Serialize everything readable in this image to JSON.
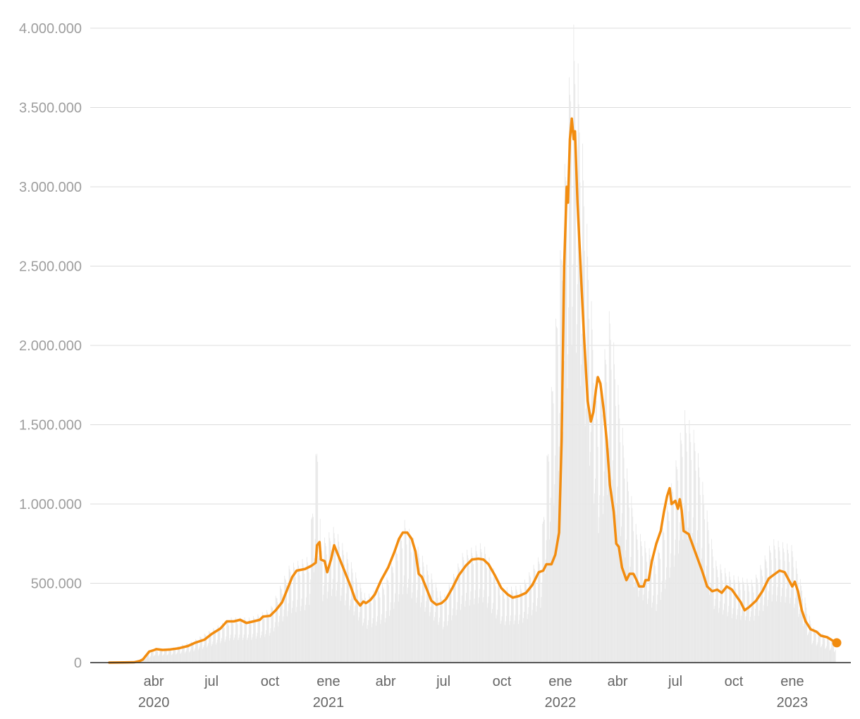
{
  "chart_data": {
    "type": "line",
    "title": "",
    "xlabel": "",
    "ylabel": "",
    "ylim": [
      0,
      4000000
    ],
    "xlim": [
      "2020-01-22",
      "2023-03-12"
    ],
    "y_ticks": [
      {
        "value": 0,
        "label": "0"
      },
      {
        "value": 500000,
        "label": "500.000"
      },
      {
        "value": 1000000,
        "label": "1.000.000"
      },
      {
        "value": 1500000,
        "label": "1.500.000"
      },
      {
        "value": 2000000,
        "label": "2.000.000"
      },
      {
        "value": 2500000,
        "label": "2.500.000"
      },
      {
        "value": 3000000,
        "label": "3.000.000"
      },
      {
        "value": 3500000,
        "label": "3.500.000"
      },
      {
        "value": 4000000,
        "label": "4.000.000"
      }
    ],
    "x_ticks": [
      {
        "date": "2020-04-01",
        "label": "abr",
        "year": "2020"
      },
      {
        "date": "2020-07-01",
        "label": "jul",
        "year": ""
      },
      {
        "date": "2020-10-01",
        "label": "oct",
        "year": ""
      },
      {
        "date": "2021-01-01",
        "label": "ene",
        "year": "2021"
      },
      {
        "date": "2021-04-01",
        "label": "abr",
        "year": ""
      },
      {
        "date": "2021-07-01",
        "label": "jul",
        "year": ""
      },
      {
        "date": "2021-10-01",
        "label": "oct",
        "year": ""
      },
      {
        "date": "2022-01-01",
        "label": "ene",
        "year": "2022"
      },
      {
        "date": "2022-04-01",
        "label": "abr",
        "year": ""
      },
      {
        "date": "2022-07-01",
        "label": "jul",
        "year": ""
      },
      {
        "date": "2022-10-01",
        "label": "oct",
        "year": ""
      },
      {
        "date": "2023-01-01",
        "label": "ene",
        "year": "2023"
      }
    ],
    "grid": true,
    "series": [
      {
        "kind": "daily-bars",
        "color": "#e8e8e8",
        "points": [
          [
            "2020-02-15",
            2000
          ],
          [
            "2020-03-01",
            5000
          ],
          [
            "2020-03-15",
            30000
          ],
          [
            "2020-04-01",
            80000
          ],
          [
            "2020-05-01",
            95000
          ],
          [
            "2020-06-01",
            135000
          ],
          [
            "2020-07-01",
            210000
          ],
          [
            "2020-08-01",
            285000
          ],
          [
            "2020-09-01",
            285000
          ],
          [
            "2020-10-01",
            340000
          ],
          [
            "2020-11-01",
            620000
          ],
          [
            "2020-12-01",
            670000
          ],
          [
            "2020-12-15",
            1490000
          ],
          [
            "2020-12-20",
            760000
          ],
          [
            "2021-01-10",
            860000
          ],
          [
            "2021-02-01",
            680000
          ],
          [
            "2021-03-01",
            420000
          ],
          [
            "2021-04-01",
            510000
          ],
          [
            "2021-05-01",
            900000
          ],
          [
            "2021-06-01",
            650000
          ],
          [
            "2021-07-01",
            410000
          ],
          [
            "2021-08-01",
            700000
          ],
          [
            "2021-09-01",
            760000
          ],
          [
            "2021-10-01",
            470000
          ],
          [
            "2021-11-01",
            490000
          ],
          [
            "2021-12-01",
            690000
          ],
          [
            "2022-01-01",
            2600000
          ],
          [
            "2022-01-20",
            4080000
          ],
          [
            "2022-01-28",
            3850000
          ],
          [
            "2022-02-15",
            2550000
          ],
          [
            "2022-03-01",
            1600000
          ],
          [
            "2022-03-20",
            2250000
          ],
          [
            "2022-04-15",
            1250000
          ],
          [
            "2022-05-01",
            850000
          ],
          [
            "2022-06-01",
            650000
          ],
          [
            "2022-07-01",
            1250000
          ],
          [
            "2022-07-15",
            1600000
          ],
          [
            "2022-08-01",
            1450000
          ],
          [
            "2022-09-01",
            650000
          ],
          [
            "2022-10-01",
            550000
          ],
          [
            "2022-11-01",
            520000
          ],
          [
            "2022-12-01",
            780000
          ],
          [
            "2023-01-01",
            740000
          ],
          [
            "2023-02-01",
            230000
          ],
          [
            "2023-03-10",
            130000
          ]
        ]
      },
      {
        "kind": "7-day-average-line",
        "color": "#f28c0f",
        "points": [
          [
            "2020-01-22",
            0
          ],
          [
            "2020-02-15",
            1000
          ],
          [
            "2020-03-01",
            2000
          ],
          [
            "2020-03-10",
            10000
          ],
          [
            "2020-03-15",
            20000
          ],
          [
            "2020-03-25",
            70000
          ],
          [
            "2020-04-01",
            78000
          ],
          [
            "2020-04-05",
            85000
          ],
          [
            "2020-04-15",
            80000
          ],
          [
            "2020-04-25",
            82000
          ],
          [
            "2020-05-10",
            90000
          ],
          [
            "2020-05-25",
            105000
          ],
          [
            "2020-06-05",
            125000
          ],
          [
            "2020-06-20",
            145000
          ],
          [
            "2020-07-01",
            180000
          ],
          [
            "2020-07-15",
            215000
          ],
          [
            "2020-07-25",
            260000
          ],
          [
            "2020-08-05",
            260000
          ],
          [
            "2020-08-15",
            270000
          ],
          [
            "2020-08-25",
            250000
          ],
          [
            "2020-09-05",
            260000
          ],
          [
            "2020-09-15",
            270000
          ],
          [
            "2020-09-20",
            290000
          ],
          [
            "2020-10-01",
            295000
          ],
          [
            "2020-10-10",
            330000
          ],
          [
            "2020-10-20",
            380000
          ],
          [
            "2020-10-28",
            460000
          ],
          [
            "2020-11-05",
            540000
          ],
          [
            "2020-11-12",
            580000
          ],
          [
            "2020-11-25",
            590000
          ],
          [
            "2020-12-05",
            610000
          ],
          [
            "2020-12-12",
            630000
          ],
          [
            "2020-12-14",
            740000
          ],
          [
            "2020-12-18",
            760000
          ],
          [
            "2020-12-20",
            650000
          ],
          [
            "2020-12-26",
            640000
          ],
          [
            "2020-12-30",
            570000
          ],
          [
            "2021-01-05",
            650000
          ],
          [
            "2021-01-10",
            740000
          ],
          [
            "2021-01-18",
            660000
          ],
          [
            "2021-01-28",
            560000
          ],
          [
            "2021-02-05",
            480000
          ],
          [
            "2021-02-12",
            400000
          ],
          [
            "2021-02-20",
            360000
          ],
          [
            "2021-02-25",
            385000
          ],
          [
            "2021-03-01",
            375000
          ],
          [
            "2021-03-08",
            395000
          ],
          [
            "2021-03-15",
            430000
          ],
          [
            "2021-03-25",
            520000
          ],
          [
            "2021-04-05",
            600000
          ],
          [
            "2021-04-15",
            700000
          ],
          [
            "2021-04-22",
            780000
          ],
          [
            "2021-04-28",
            820000
          ],
          [
            "2021-05-05",
            820000
          ],
          [
            "2021-05-12",
            780000
          ],
          [
            "2021-05-18",
            700000
          ],
          [
            "2021-05-23",
            560000
          ],
          [
            "2021-05-28",
            540000
          ],
          [
            "2021-06-05",
            460000
          ],
          [
            "2021-06-12",
            390000
          ],
          [
            "2021-06-20",
            365000
          ],
          [
            "2021-06-28",
            375000
          ],
          [
            "2021-07-05",
            400000
          ],
          [
            "2021-07-15",
            470000
          ],
          [
            "2021-07-25",
            550000
          ],
          [
            "2021-08-05",
            610000
          ],
          [
            "2021-08-15",
            650000
          ],
          [
            "2021-08-25",
            655000
          ],
          [
            "2021-09-02",
            650000
          ],
          [
            "2021-09-10",
            620000
          ],
          [
            "2021-09-20",
            550000
          ],
          [
            "2021-09-30",
            470000
          ],
          [
            "2021-10-10",
            430000
          ],
          [
            "2021-10-18",
            410000
          ],
          [
            "2021-10-28",
            420000
          ],
          [
            "2021-11-08",
            440000
          ],
          [
            "2021-11-18",
            490000
          ],
          [
            "2021-11-28",
            570000
          ],
          [
            "2021-12-05",
            580000
          ],
          [
            "2021-12-10",
            620000
          ],
          [
            "2021-12-18",
            620000
          ],
          [
            "2021-12-24",
            680000
          ],
          [
            "2021-12-30",
            820000
          ],
          [
            "2022-01-03",
            1400000
          ],
          [
            "2022-01-07",
            2500000
          ],
          [
            "2022-01-11",
            3000000
          ],
          [
            "2022-01-13",
            2900000
          ],
          [
            "2022-01-16",
            3300000
          ],
          [
            "2022-01-19",
            3430000
          ],
          [
            "2022-01-22",
            3300000
          ],
          [
            "2022-01-24",
            3350000
          ],
          [
            "2022-01-28",
            2900000
          ],
          [
            "2022-02-03",
            2400000
          ],
          [
            "2022-02-08",
            2000000
          ],
          [
            "2022-02-13",
            1650000
          ],
          [
            "2022-02-18",
            1520000
          ],
          [
            "2022-02-22",
            1580000
          ],
          [
            "2022-02-26",
            1720000
          ],
          [
            "2022-03-01",
            1800000
          ],
          [
            "2022-03-05",
            1760000
          ],
          [
            "2022-03-10",
            1600000
          ],
          [
            "2022-03-15",
            1400000
          ],
          [
            "2022-03-20",
            1120000
          ],
          [
            "2022-03-26",
            950000
          ],
          [
            "2022-03-30",
            750000
          ],
          [
            "2022-04-03",
            730000
          ],
          [
            "2022-04-08",
            600000
          ],
          [
            "2022-04-15",
            520000
          ],
          [
            "2022-04-20",
            560000
          ],
          [
            "2022-04-26",
            560000
          ],
          [
            "2022-05-01",
            520000
          ],
          [
            "2022-05-05",
            480000
          ],
          [
            "2022-05-12",
            480000
          ],
          [
            "2022-05-15",
            520000
          ],
          [
            "2022-05-20",
            520000
          ],
          [
            "2022-05-25",
            640000
          ],
          [
            "2022-06-01",
            750000
          ],
          [
            "2022-06-08",
            830000
          ],
          [
            "2022-06-13",
            950000
          ],
          [
            "2022-06-18",
            1050000
          ],
          [
            "2022-06-22",
            1100000
          ],
          [
            "2022-06-25",
            1000000
          ],
          [
            "2022-07-01",
            1020000
          ],
          [
            "2022-07-05",
            970000
          ],
          [
            "2022-07-08",
            1030000
          ],
          [
            "2022-07-11",
            960000
          ],
          [
            "2022-07-14",
            830000
          ],
          [
            "2022-07-22",
            810000
          ],
          [
            "2022-08-01",
            700000
          ],
          [
            "2022-08-12",
            580000
          ],
          [
            "2022-08-20",
            480000
          ],
          [
            "2022-08-28",
            450000
          ],
          [
            "2022-09-05",
            460000
          ],
          [
            "2022-09-12",
            440000
          ],
          [
            "2022-09-20",
            480000
          ],
          [
            "2022-09-28",
            460000
          ],
          [
            "2022-10-05",
            420000
          ],
          [
            "2022-10-12",
            380000
          ],
          [
            "2022-10-18",
            330000
          ],
          [
            "2022-10-25",
            350000
          ],
          [
            "2022-11-05",
            390000
          ],
          [
            "2022-11-15",
            450000
          ],
          [
            "2022-11-25",
            530000
          ],
          [
            "2022-12-05",
            560000
          ],
          [
            "2022-12-12",
            580000
          ],
          [
            "2022-12-20",
            570000
          ],
          [
            "2022-12-28",
            510000
          ],
          [
            "2023-01-01",
            480000
          ],
          [
            "2023-01-05",
            510000
          ],
          [
            "2023-01-10",
            450000
          ],
          [
            "2023-01-16",
            330000
          ],
          [
            "2023-01-22",
            260000
          ],
          [
            "2023-01-30",
            210000
          ],
          [
            "2023-02-08",
            195000
          ],
          [
            "2023-02-15",
            170000
          ],
          [
            "2023-02-25",
            160000
          ],
          [
            "2023-03-05",
            140000
          ],
          [
            "2023-03-12",
            125000
          ]
        ]
      }
    ]
  }
}
